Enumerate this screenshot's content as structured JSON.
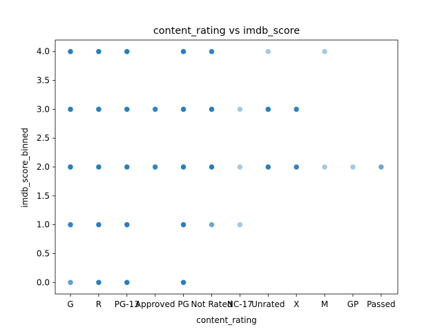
{
  "chart_data": {
    "type": "scatter",
    "title": "content_rating vs imdb_score",
    "xlabel": "content_rating",
    "ylabel": "imdb_score_binned",
    "categories": [
      "G",
      "R",
      "PG-13",
      "Approved",
      "PG",
      "Not Rated",
      "NC-17",
      "Unrated",
      "X",
      "M",
      "GP",
      "Passed"
    ],
    "y_ticks": [
      "0.0",
      "0.5",
      "1.0",
      "1.5",
      "2.0",
      "2.5",
      "3.0",
      "3.5",
      "4.0"
    ],
    "ylim": [
      -0.2,
      4.2
    ],
    "grid": false,
    "marker_color": "#1f77b4",
    "points": [
      {
        "x": "G",
        "y": 0,
        "alpha": 0.7
      },
      {
        "x": "G",
        "y": 1,
        "alpha": 0.9
      },
      {
        "x": "G",
        "y": 2,
        "alpha": 0.95
      },
      {
        "x": "G",
        "y": 3,
        "alpha": 0.95
      },
      {
        "x": "G",
        "y": 4,
        "alpha": 0.95
      },
      {
        "x": "R",
        "y": 0,
        "alpha": 0.95
      },
      {
        "x": "R",
        "y": 1,
        "alpha": 0.95
      },
      {
        "x": "R",
        "y": 2,
        "alpha": 0.95
      },
      {
        "x": "R",
        "y": 3,
        "alpha": 0.95
      },
      {
        "x": "R",
        "y": 4,
        "alpha": 0.95
      },
      {
        "x": "PG-13",
        "y": 0,
        "alpha": 0.95
      },
      {
        "x": "PG-13",
        "y": 1,
        "alpha": 0.95
      },
      {
        "x": "PG-13",
        "y": 2,
        "alpha": 0.95
      },
      {
        "x": "PG-13",
        "y": 3,
        "alpha": 0.95
      },
      {
        "x": "PG-13",
        "y": 4,
        "alpha": 0.95
      },
      {
        "x": "Approved",
        "y": 2,
        "alpha": 0.9
      },
      {
        "x": "Approved",
        "y": 3,
        "alpha": 0.9
      },
      {
        "x": "PG",
        "y": 0,
        "alpha": 0.95
      },
      {
        "x": "PG",
        "y": 1,
        "alpha": 0.95
      },
      {
        "x": "PG",
        "y": 2,
        "alpha": 0.95
      },
      {
        "x": "PG",
        "y": 3,
        "alpha": 0.95
      },
      {
        "x": "PG",
        "y": 4,
        "alpha": 0.95
      },
      {
        "x": "Not Rated",
        "y": 1,
        "alpha": 0.65
      },
      {
        "x": "Not Rated",
        "y": 2,
        "alpha": 0.95
      },
      {
        "x": "Not Rated",
        "y": 3,
        "alpha": 0.95
      },
      {
        "x": "Not Rated",
        "y": 4,
        "alpha": 0.9
      },
      {
        "x": "NC-17",
        "y": 1,
        "alpha": 0.4
      },
      {
        "x": "NC-17",
        "y": 2,
        "alpha": 0.4
      },
      {
        "x": "NC-17",
        "y": 3,
        "alpha": 0.4
      },
      {
        "x": "Unrated",
        "y": 2,
        "alpha": 0.95
      },
      {
        "x": "Unrated",
        "y": 3,
        "alpha": 0.95
      },
      {
        "x": "Unrated",
        "y": 4,
        "alpha": 0.4
      },
      {
        "x": "X",
        "y": 2,
        "alpha": 0.9
      },
      {
        "x": "X",
        "y": 3,
        "alpha": 0.9
      },
      {
        "x": "M",
        "y": 2,
        "alpha": 0.4
      },
      {
        "x": "M",
        "y": 4,
        "alpha": 0.4
      },
      {
        "x": "GP",
        "y": 2,
        "alpha": 0.4
      },
      {
        "x": "Passed",
        "y": 2,
        "alpha": 0.65
      }
    ]
  }
}
